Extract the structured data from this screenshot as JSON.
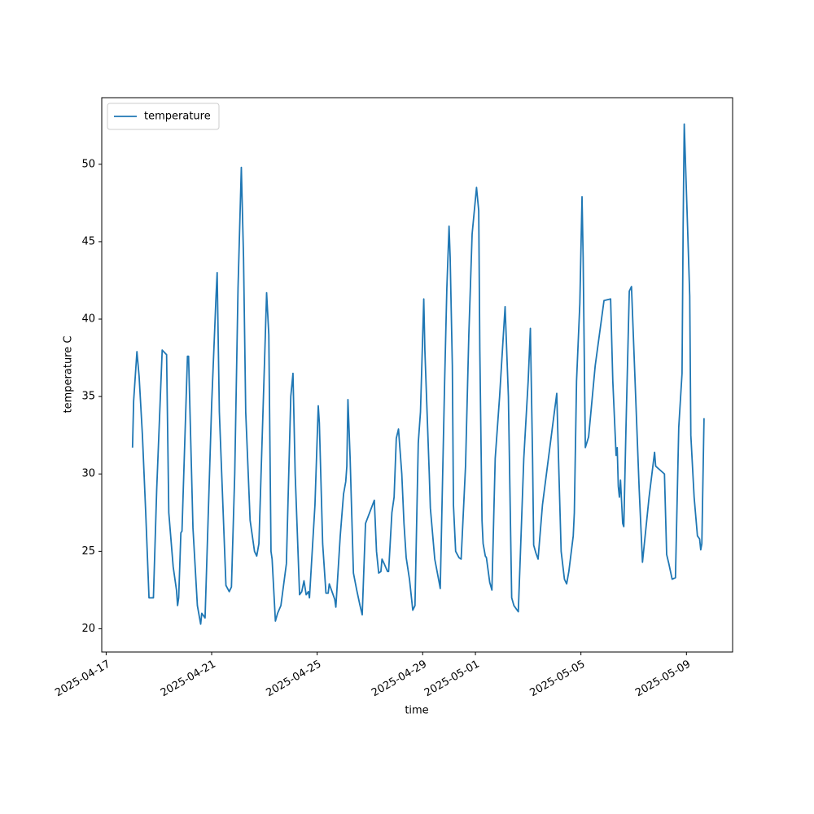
{
  "chart_data": {
    "type": "line",
    "xlabel": "time",
    "ylabel": "temperature C",
    "x": [
      "2025-04-18 00:00",
      "2025-04-18 01:00",
      "2025-04-18 04:00",
      "2025-04-18 06:00",
      "2025-04-18 09:00",
      "2025-04-18 12:00",
      "2025-04-18 15:00",
      "2025-04-18 19:00",
      "2025-04-18 22:00",
      "2025-04-19 03:00",
      "2025-04-19 07:00",
      "2025-04-19 09:00",
      "2025-04-19 13:00",
      "2025-04-19 16:00",
      "2025-04-19 17:00",
      "2025-04-19 18:00",
      "2025-04-19 20:00",
      "2025-04-19 21:00",
      "2025-04-20 02:00",
      "2025-04-20 03:00",
      "2025-04-20 07:00",
      "2025-04-20 11:00",
      "2025-04-20 14:00",
      "2025-04-20 15:00",
      "2025-04-20 18:00",
      "2025-04-21 00:00",
      "2025-04-21 04:00",
      "2025-04-21 05:00",
      "2025-04-21 07:00",
      "2025-04-21 13:00",
      "2025-04-21 16:00",
      "2025-04-21 18:00",
      "2025-04-21 21:00",
      "2025-04-22 00:00",
      "2025-04-22 03:00",
      "2025-04-22 05:00",
      "2025-04-22 07:00",
      "2025-04-22 11:00",
      "2025-04-22 15:00",
      "2025-04-22 17:00",
      "2025-04-22 19:00",
      "2025-04-22 20:00",
      "2025-04-23 00:00",
      "2025-04-23 02:00",
      "2025-04-23 04:00",
      "2025-04-23 06:00",
      "2025-04-23 07:00",
      "2025-04-23 10:00",
      "2025-04-23 12:00",
      "2025-04-23 15:00",
      "2025-04-23 20:00",
      "2025-04-24 00:00",
      "2025-04-24 02:00",
      "2025-04-24 04:00",
      "2025-04-24 08:00",
      "2025-04-24 10:00",
      "2025-04-24 12:00",
      "2025-04-24 14:00",
      "2025-04-24 16:00",
      "2025-04-24 17:00",
      "2025-04-24 22:00",
      "2025-04-25 01:00",
      "2025-04-25 02:00",
      "2025-04-25 05:00",
      "2025-04-25 08:00",
      "2025-04-25 10:00",
      "2025-04-25 11:00",
      "2025-04-25 16:00",
      "2025-04-25 17:00",
      "2025-04-25 21:00",
      "2025-04-26 00:00",
      "2025-04-26 02:00",
      "2025-04-26 03:00",
      "2025-04-26 04:00",
      "2025-04-26 06:00",
      "2025-04-26 09:00",
      "2025-04-26 12:00",
      "2025-04-26 15:00",
      "2025-04-26 17:00",
      "2025-04-26 20:00",
      "2025-04-27 04:00",
      "2025-04-27 06:00",
      "2025-04-27 08:00",
      "2025-04-27 10:00",
      "2025-04-27 11:00",
      "2025-04-27 13:00",
      "2025-04-27 16:00",
      "2025-04-27 17:00",
      "2025-04-27 20:00",
      "2025-04-27 22:00",
      "2025-04-28 00:00",
      "2025-04-28 02:00",
      "2025-04-28 05:00",
      "2025-04-28 07:00",
      "2025-04-28 09:00",
      "2025-04-28 12:00",
      "2025-04-28 15:00",
      "2025-04-28 17:00",
      "2025-04-28 20:00",
      "2025-04-28 22:00",
      "2025-04-29 01:00",
      "2025-04-29 02:00",
      "2025-04-29 06:00",
      "2025-04-29 07:00",
      "2025-04-29 11:00",
      "2025-04-29 15:00",
      "2025-04-29 16:00",
      "2025-04-29 20:00",
      "2025-04-29 22:00",
      "2025-04-30 00:00",
      "2025-04-30 01:00",
      "2025-04-30 03:00",
      "2025-04-30 04:00",
      "2025-04-30 06:00",
      "2025-04-30 09:00",
      "2025-04-30 11:00",
      "2025-04-30 15:00",
      "2025-04-30 18:00",
      "2025-04-30 21:00",
      "2025-05-01 01:00",
      "2025-05-01 03:00",
      "2025-05-01 04:00",
      "2025-05-01 06:00",
      "2025-05-01 07:00",
      "2025-05-01 09:00",
      "2025-05-01 10:00",
      "2025-05-01 13:00",
      "2025-05-01 15:00",
      "2025-05-01 18:00",
      "2025-05-01 22:00",
      "2025-05-02 01:00",
      "2025-05-02 03:00",
      "2025-05-02 06:00",
      "2025-05-02 09:00",
      "2025-05-02 11:00",
      "2025-05-02 15:00",
      "2025-05-02 17:00",
      "2025-05-02 20:00",
      "2025-05-03 00:00",
      "2025-05-03 02:00",
      "2025-05-03 04:00",
      "2025-05-03 05:00",
      "2025-05-03 07:00",
      "2025-05-03 09:00",
      "2025-05-03 13:00",
      "2025-05-04 02:00",
      "2025-05-04 04:00",
      "2025-05-04 06:00",
      "2025-05-04 09:00",
      "2025-05-04 11:00",
      "2025-05-04 13:00",
      "2025-05-04 17:00",
      "2025-05-04 18:00",
      "2025-05-04 20:00",
      "2025-05-04 23:00",
      "2025-05-05 01:00",
      "2025-05-05 02:00",
      "2025-05-05 04:00",
      "2025-05-05 07:00",
      "2025-05-05 13:00",
      "2025-05-05 21:00",
      "2025-05-06 03:00",
      "2025-05-06 05:00",
      "2025-05-06 08:00",
      "2025-05-06 09:00",
      "2025-05-06 10:00",
      "2025-05-06 11:00",
      "2025-05-06 12:00",
      "2025-05-06 14:00",
      "2025-05-06 15:00",
      "2025-05-06 17:00",
      "2025-05-06 20:00",
      "2025-05-06 22:00",
      "2025-05-07 05:00",
      "2025-05-07 08:00",
      "2025-05-07 14:00",
      "2025-05-07 19:00",
      "2025-05-07 20:00",
      "2025-05-08 04:00",
      "2025-05-08 06:00",
      "2025-05-08 08:00",
      "2025-05-08 11:00",
      "2025-05-08 14:00",
      "2025-05-08 17:00",
      "2025-05-08 20:00",
      "2025-05-08 21:00",
      "2025-05-08 22:00",
      "2025-05-09 01:00",
      "2025-05-09 03:00",
      "2025-05-09 04:00",
      "2025-05-09 07:00",
      "2025-05-09 10:00",
      "2025-05-09 12:00",
      "2025-05-09 13:00",
      "2025-05-09 14:00",
      "2025-05-09 16:00"
    ],
    "series": [
      {
        "name": "temperature",
        "color": "#1f77b4",
        "values": [
          31.7,
          34.7,
          37.9,
          36.3,
          32.5,
          27.5,
          22.0,
          22.0,
          29,
          38.0,
          37.7,
          27.5,
          24,
          22.5,
          21.5,
          22,
          26.2,
          26.3,
          37.6,
          37.6,
          26.5,
          21.5,
          20.3,
          21.0,
          20.7,
          34.5,
          41.5,
          43.0,
          34,
          22.8,
          22.4,
          22.7,
          30,
          42,
          49.8,
          44,
          34,
          27,
          25,
          24.7,
          25.5,
          27.8,
          37,
          41.7,
          39,
          25,
          24.5,
          20.5,
          21,
          21.5,
          24.2,
          35,
          36.5,
          30,
          22.2,
          22.4,
          23.1,
          22.2,
          22.4,
          22.0,
          28,
          34.4,
          33.3,
          25.5,
          22.3,
          22.3,
          22.9,
          21.9,
          21.4,
          26,
          28.7,
          29.5,
          30.5,
          34.8,
          31,
          23.6,
          22.5,
          21.5,
          20.9,
          26.8,
          28.3,
          25,
          23.6,
          23.7,
          24.5,
          24.2,
          23.7,
          23.7,
          27.5,
          28.5,
          32.3,
          32.9,
          30,
          26.8,
          24.6,
          23.2,
          21.2,
          21.5,
          32,
          34,
          41.3,
          38,
          30,
          27.8,
          24.5,
          23,
          22.6,
          36,
          42,
          46,
          44,
          37,
          28,
          25,
          24.6,
          24.5,
          30.5,
          39,
          45.5,
          48.5,
          47,
          38,
          27,
          25.5,
          24.7,
          24.6,
          23,
          22.5,
          31,
          35,
          38.5,
          40.8,
          35,
          22,
          21.5,
          21.1,
          25,
          31,
          36,
          39.4,
          31,
          25.4,
          24.9,
          24.5,
          28,
          35.2,
          30,
          25,
          23.2,
          22.9,
          23.7,
          26,
          27.5,
          36,
          41,
          47.9,
          44,
          31.7,
          32.4,
          37,
          41.2,
          41.3,
          36,
          31.2,
          31.7,
          29.2,
          28.5,
          29.6,
          26.8,
          26.6,
          33,
          41.8,
          42.1,
          29,
          24.3,
          28.5,
          31.4,
          30.5,
          30,
          24.8,
          24.2,
          23.2,
          23.3,
          33,
          36.5,
          46,
          52.6,
          46,
          41.5,
          32.5,
          28.5,
          26,
          25.8,
          25.1,
          25.5,
          33.6
        ]
      }
    ],
    "xlim": [
      "2025-04-16 20:00",
      "2025-05-10 18:00"
    ],
    "xticks": [
      "2025-04-17",
      "2025-04-21",
      "2025-04-25",
      "2025-04-29",
      "2025-05-01",
      "2025-05-05",
      "2025-05-09"
    ],
    "ylim": [
      18.5,
      54.3
    ],
    "yticks": [
      20,
      25,
      30,
      35,
      40,
      45,
      50
    ],
    "legend": "upper left"
  }
}
